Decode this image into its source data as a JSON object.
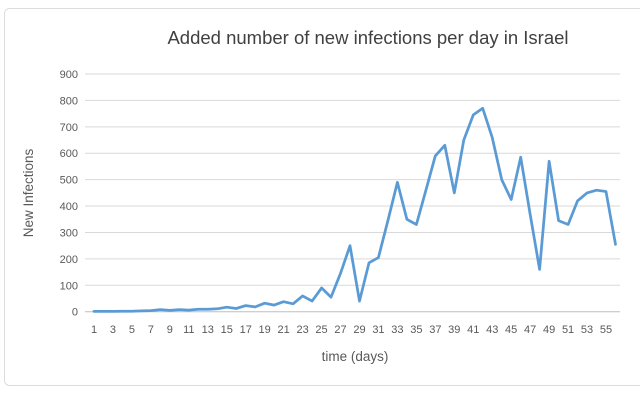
{
  "chart": {
    "title": "Added number of new infections per day in Israel",
    "x_axis_label": "time (days)",
    "y_axis_label": "New Infections",
    "colors": {
      "line": "#5B9BD5",
      "gridline": "#D9D9D9",
      "axis_line": "#BFBFBF",
      "tick_text": "#595959",
      "axis_title_text": "#595959",
      "title_text": "#404040",
      "frame_border": "#DCDCDC",
      "background": "#FFFFFF"
    }
  },
  "chart_data": {
    "type": "line",
    "title": "Added number of new infections per day in Israel",
    "xlabel": "time (days)",
    "ylabel": "New Infections",
    "x_start": 1,
    "x_step": 1,
    "x": [
      1,
      2,
      3,
      4,
      5,
      6,
      7,
      8,
      9,
      10,
      11,
      12,
      13,
      14,
      15,
      16,
      17,
      18,
      19,
      20,
      21,
      22,
      23,
      24,
      25,
      26,
      27,
      28,
      29,
      30,
      31,
      32,
      33,
      34,
      35,
      36,
      37,
      38,
      39,
      40,
      41,
      42,
      43,
      44,
      45,
      46,
      47,
      48,
      49,
      50,
      51,
      52,
      53,
      54,
      55,
      56
    ],
    "values": [
      1,
      1,
      1,
      2,
      2,
      3,
      4,
      8,
      5,
      8,
      6,
      9,
      9,
      11,
      17,
      12,
      23,
      18,
      32,
      25,
      38,
      30,
      60,
      40,
      90,
      55,
      145,
      250,
      40,
      185,
      205,
      345,
      490,
      350,
      330,
      460,
      590,
      630,
      450,
      650,
      745,
      770,
      660,
      500,
      425,
      585,
      370,
      160,
      570,
      345,
      330,
      420,
      450,
      460,
      455,
      255
    ],
    "x_tick_labels": [
      "1",
      "3",
      "5",
      "7",
      "9",
      "11",
      "13",
      "15",
      "17",
      "19",
      "21",
      "23",
      "25",
      "27",
      "29",
      "31",
      "33",
      "35",
      "37",
      "39",
      "41",
      "43",
      "45",
      "47",
      "49",
      "51",
      "53",
      "55"
    ],
    "y_ticks": [
      0,
      100,
      200,
      300,
      400,
      500,
      600,
      700,
      800,
      900
    ],
    "ylim": [
      0,
      900
    ],
    "grid": "horizontal",
    "legend": "none",
    "series_color": "#5B9BD5"
  }
}
